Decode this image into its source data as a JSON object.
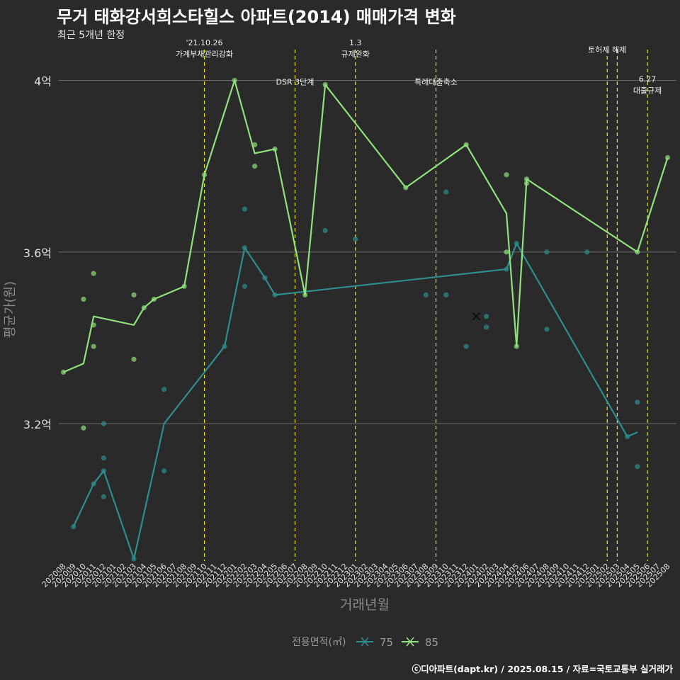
{
  "title": "무거 태화강서희스타힐스 아파트(2014) 매매가격 변화",
  "subtitle": "최근 5개년 한정",
  "caption": "ⓒ디아파트(dapt.kr) / 2025.08.15 / 자료=국토교통부 실거래가",
  "colors": {
    "background": "#2b2a2b",
    "area_75": "#2e8d8d",
    "area_85": "#90e07c",
    "event_line": "#e8e62b",
    "grid": "#6a6a6a"
  },
  "chart_data": {
    "type": "line",
    "xlabel": "거래년월",
    "ylabel": "평균가(원)",
    "ylim": [
      2.88,
      4.08
    ],
    "y_ticks": [
      {
        "value": 3.2,
        "label": "3.2억"
      },
      {
        "value": 3.6,
        "label": "3.6억"
      },
      {
        "value": 4.0,
        "label": "4억"
      }
    ],
    "categories": [
      "202008",
      "202009",
      "202010",
      "202011",
      "202012",
      "202101",
      "202102",
      "202103",
      "202104",
      "202105",
      "202106",
      "202107",
      "202108",
      "202109",
      "202110",
      "202111",
      "202112",
      "202201",
      "202202",
      "202203",
      "202204",
      "202205",
      "202206",
      "202207",
      "202208",
      "202209",
      "202210",
      "202211",
      "202212",
      "202301",
      "202302",
      "202303",
      "202304",
      "202305",
      "202306",
      "202307",
      "202308",
      "202309",
      "202310",
      "202311",
      "202312",
      "202401",
      "202402",
      "202403",
      "202404",
      "202405",
      "202406",
      "202407",
      "202408",
      "202409",
      "202410",
      "202411",
      "202412",
      "202501",
      "202502",
      "202503",
      "202504",
      "202505",
      "202506",
      "202507",
      "202508"
    ],
    "legend": {
      "title": "전용면적(㎡)",
      "position": "bottom"
    },
    "series": [
      {
        "name": "75",
        "color": "#2e8d8d",
        "line": [
          [
            "202009",
            2.96
          ],
          [
            "202011",
            3.06
          ],
          [
            "202012",
            3.09
          ],
          [
            "202103",
            2.885
          ],
          [
            "202106",
            3.2
          ],
          [
            "202112",
            3.38
          ],
          [
            "202202",
            3.61
          ],
          [
            "202204",
            3.54
          ],
          [
            "202205",
            3.5
          ],
          [
            "202404",
            3.56
          ],
          [
            "202405",
            3.62
          ],
          [
            "202504",
            3.17
          ],
          [
            "202505",
            3.18
          ]
        ],
        "points": [
          [
            "202009",
            2.96
          ],
          [
            "202011",
            3.06
          ],
          [
            "202012",
            3.09
          ],
          [
            "202012",
            3.03
          ],
          [
            "202012",
            3.12
          ],
          [
            "202012",
            3.2
          ],
          [
            "202103",
            2.885
          ],
          [
            "202106",
            3.09
          ],
          [
            "202106",
            3.28
          ],
          [
            "202112",
            3.38
          ],
          [
            "202202",
            3.52
          ],
          [
            "202202",
            3.7
          ],
          [
            "202202",
            3.61
          ],
          [
            "202204",
            3.54
          ],
          [
            "202205",
            3.5
          ],
          [
            "202210",
            3.65
          ],
          [
            "202301",
            3.63
          ],
          [
            "202308",
            3.5
          ],
          [
            "202310",
            3.5
          ],
          [
            "202310",
            3.74
          ],
          [
            "202312",
            3.38
          ],
          [
            "202402",
            3.45
          ],
          [
            "202402",
            3.425
          ],
          [
            "202404",
            3.56
          ],
          [
            "202405",
            3.62
          ],
          [
            "202408",
            3.6
          ],
          [
            "202408",
            3.42
          ],
          [
            "202412",
            3.6
          ],
          [
            "202504",
            3.17
          ],
          [
            "202505",
            3.25
          ],
          [
            "202505",
            3.1
          ]
        ]
      },
      {
        "name": "85",
        "color": "#90e07c",
        "line": [
          [
            "202008",
            3.32
          ],
          [
            "202010",
            3.34
          ],
          [
            "202011",
            3.45
          ],
          [
            "202103",
            3.43
          ],
          [
            "202104",
            3.47
          ],
          [
            "202105",
            3.49
          ],
          [
            "202108",
            3.52
          ],
          [
            "202110",
            3.78
          ],
          [
            "202201",
            4.0
          ],
          [
            "202203",
            3.83
          ],
          [
            "202205",
            3.84
          ],
          [
            "202208",
            3.5
          ],
          [
            "202210",
            3.99
          ],
          [
            "202306",
            3.75
          ],
          [
            "202312",
            3.85
          ],
          [
            "202404",
            3.69
          ],
          [
            "202405",
            3.38
          ],
          [
            "202406",
            3.77
          ],
          [
            "202505",
            3.6
          ],
          [
            "202508",
            3.82
          ]
        ],
        "points": [
          [
            "202008",
            3.32
          ],
          [
            "202010",
            3.49
          ],
          [
            "202010",
            3.19
          ],
          [
            "202011",
            3.43
          ],
          [
            "202011",
            3.38
          ],
          [
            "202011",
            3.55
          ],
          [
            "202103",
            3.5
          ],
          [
            "202103",
            3.35
          ],
          [
            "202104",
            3.47
          ],
          [
            "202105",
            3.49
          ],
          [
            "202108",
            3.52
          ],
          [
            "202110",
            3.78
          ],
          [
            "202201",
            4.0
          ],
          [
            "202203",
            3.85
          ],
          [
            "202203",
            3.8
          ],
          [
            "202205",
            3.84
          ],
          [
            "202208",
            3.5
          ],
          [
            "202210",
            3.99
          ],
          [
            "202306",
            3.75
          ],
          [
            "202312",
            3.85
          ],
          [
            "202404",
            3.6
          ],
          [
            "202404",
            3.78
          ],
          [
            "202405",
            3.38
          ],
          [
            "202406",
            3.77
          ],
          [
            "202406",
            3.76
          ],
          [
            "202505",
            3.6
          ],
          [
            "202508",
            3.82
          ]
        ]
      }
    ],
    "events": [
      {
        "x": "202110",
        "lines": [
          "'21.10.26",
          "가계부채관리강화"
        ],
        "label_y": 4.075
      },
      {
        "x": "202207",
        "lines": [
          "DSR 3단계"
        ],
        "label_y": 4.0
      },
      {
        "x": "202301",
        "lines": [
          "1.3",
          "규제완화"
        ],
        "label_y": 4.075
      },
      {
        "x": "202309",
        "lines": [
          "특례대출축소"
        ],
        "label_y": 4.0
      },
      {
        "x": "202502",
        "lines": [
          "토허제 해제"
        ],
        "label_y": 4.075
      },
      {
        "x": "202503",
        "lines": [],
        "label_y": 4.075
      },
      {
        "x": "202506",
        "lines": [
          "6.27",
          "대출규제"
        ],
        "label_y": 3.99
      }
    ],
    "cross_marker": [
      "202401",
      3.45
    ]
  }
}
